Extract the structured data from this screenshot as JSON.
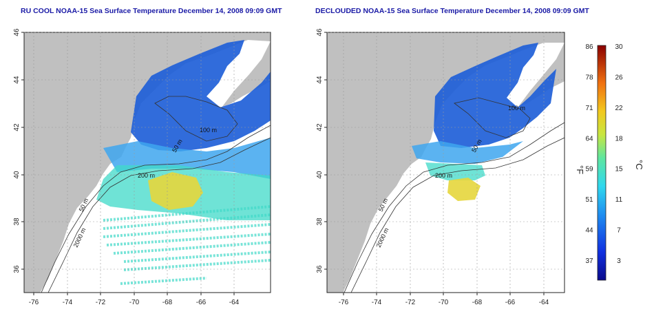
{
  "panels": [
    {
      "title": "RU COOL NOAA-15 Sea Surface Temperature December 14, 2008 09:09 GMT",
      "contour_labels": [
        "100 m",
        "50 m",
        "200 m",
        "50 m",
        "2000 m"
      ]
    },
    {
      "title": "DECLOUDED NOAA-15 Sea Surface Temperature December 14, 2008 09:09 GMT",
      "contour_labels": [
        "100 m",
        "50 m",
        "200 m",
        "50 m",
        "2000 m"
      ]
    }
  ],
  "axes": {
    "x_ticks": [
      "-76",
      "-74",
      "-72",
      "-70",
      "-68",
      "-66",
      "-64"
    ],
    "y_ticks": [
      "46",
      "44",
      "42",
      "40",
      "38",
      "36"
    ]
  },
  "colorbar": {
    "fahrenheit_ticks": [
      "86",
      "78",
      "71",
      "64",
      "59",
      "51",
      "44",
      "37"
    ],
    "celsius_ticks": [
      "30",
      "26",
      "22",
      "18",
      "15",
      "11",
      "7",
      "3"
    ],
    "fahrenheit_label": "°F",
    "celsius_label": "°C"
  },
  "colors": {
    "land": "#c0c0c0",
    "grid": "#9a9a9a",
    "title": "#1a1aa6",
    "cold": "#1f5fd8",
    "cool": "#3ea6ef",
    "mild": "#3fd9c8",
    "warm": "#e6d63c"
  }
}
